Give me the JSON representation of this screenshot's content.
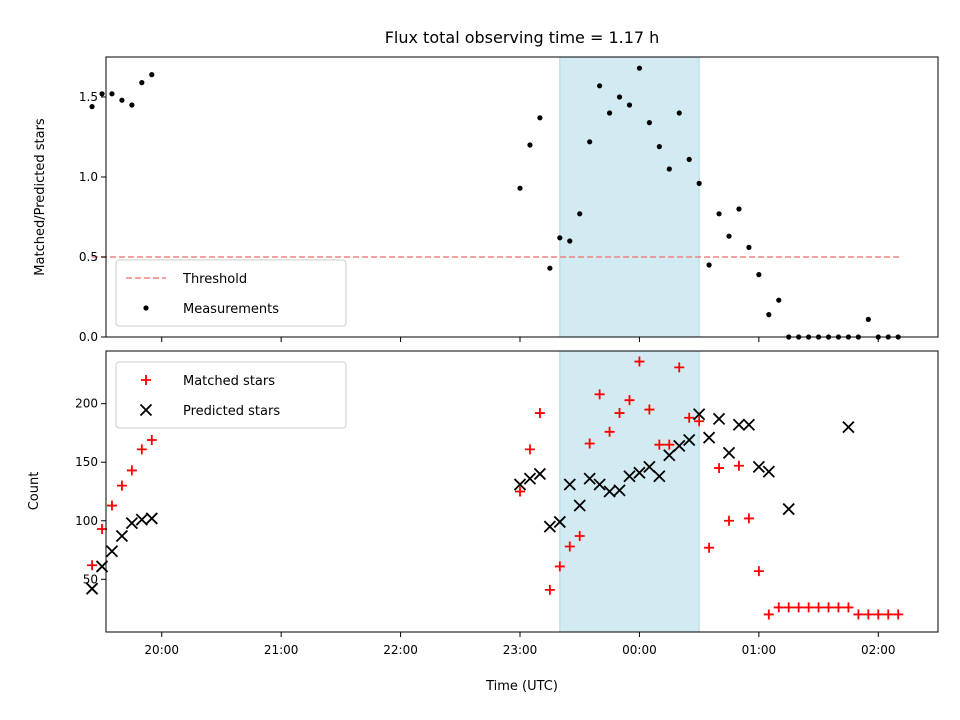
{
  "chart_data": [
    {
      "type": "scatter",
      "title": "Flux total observing time = 1.17 h",
      "xlabel": "",
      "ylabel": "Matched/Predicted stars",
      "xlim": [
        "19:32",
        "02:30"
      ],
      "ylim": [
        0,
        1.75
      ],
      "yticks": [
        0.0,
        0.5,
        1.0,
        1.5
      ],
      "ytick_labels": [
        "0.0",
        "0.5",
        "1.0",
        "1.5"
      ],
      "xticks": [
        "20:00",
        "21:00",
        "22:00",
        "23:00",
        "00:00",
        "01:00",
        "02:00"
      ],
      "show_xtick_labels": false,
      "grid": false,
      "legend_location": "lower left",
      "shaded_span": {
        "from": "23:20",
        "to": "00:30",
        "color": "#add8e6"
      },
      "threshold": {
        "name": "Threshold",
        "value": 0.5,
        "from": "19:25",
        "to": "02:12",
        "color": "#f08080",
        "style": "dashed"
      },
      "series": [
        {
          "name": "Measurements",
          "color": "#000000",
          "marker": "dot",
          "x": [
            "19:25",
            "19:30",
            "19:35",
            "19:40",
            "19:45",
            "19:50",
            "19:55",
            "23:00",
            "23:05",
            "23:10",
            "23:15",
            "23:20",
            "23:25",
            "23:30",
            "23:35",
            "23:40",
            "23:45",
            "23:50",
            "23:55",
            "00:00",
            "00:05",
            "00:10",
            "00:15",
            "00:20",
            "00:25",
            "00:30",
            "00:35",
            "00:40",
            "00:45",
            "00:50",
            "00:55",
            "01:00",
            "01:05",
            "01:10",
            "01:15",
            "01:20",
            "01:25",
            "01:30",
            "01:35",
            "01:40",
            "01:45",
            "01:50",
            "01:55",
            "02:00",
            "02:05",
            "02:10"
          ],
          "values": [
            1.44,
            1.52,
            1.52,
            1.48,
            1.45,
            1.59,
            1.64,
            0.93,
            1.2,
            1.37,
            0.43,
            0.62,
            0.6,
            0.77,
            1.22,
            1.57,
            1.4,
            1.5,
            1.45,
            1.68,
            1.34,
            1.19,
            1.05,
            1.4,
            1.11,
            0.96,
            0.45,
            0.77,
            0.63,
            0.8,
            0.56,
            0.39,
            0.14,
            0.23,
            0.0,
            0.0,
            0.0,
            0.0,
            0.0,
            0.0,
            0.0,
            0.0,
            0.11,
            0.0,
            0.0,
            0.0
          ]
        }
      ]
    },
    {
      "type": "scatter",
      "title": "",
      "xlabel": "Time (UTC)",
      "ylabel": "Count",
      "xlim": [
        "19:32",
        "02:30"
      ],
      "ylim": [
        5,
        245
      ],
      "yticks": [
        50,
        100,
        150,
        200
      ],
      "ytick_labels": [
        "50",
        "100",
        "150",
        "200"
      ],
      "xticks": [
        "20:00",
        "21:00",
        "22:00",
        "23:00",
        "00:00",
        "01:00",
        "02:00"
      ],
      "xtick_labels": [
        "20:00",
        "21:00",
        "22:00",
        "23:00",
        "00:00",
        "01:00",
        "02:00"
      ],
      "grid": false,
      "legend_location": "upper left",
      "shaded_span": {
        "from": "23:20",
        "to": "00:30",
        "color": "#add8e6"
      },
      "series": [
        {
          "name": "Matched stars",
          "color": "#ff0000",
          "marker": "plus",
          "x": [
            "19:25",
            "19:30",
            "19:35",
            "19:40",
            "19:45",
            "19:50",
            "19:55",
            "23:00",
            "23:05",
            "23:10",
            "23:15",
            "23:20",
            "23:25",
            "23:30",
            "23:35",
            "23:40",
            "23:45",
            "23:50",
            "23:55",
            "00:00",
            "00:05",
            "00:10",
            "00:15",
            "00:20",
            "00:25",
            "00:30",
            "00:35",
            "00:40",
            "00:45",
            "00:50",
            "00:55",
            "01:00",
            "01:05",
            "01:10",
            "01:15",
            "01:20",
            "01:25",
            "01:30",
            "01:35",
            "01:40",
            "01:45",
            "01:50",
            "01:55",
            "02:00",
            "02:05",
            "02:10"
          ],
          "values": [
            62,
            93,
            113,
            130,
            143,
            161,
            169,
            125,
            161,
            192,
            41,
            61,
            78,
            87,
            166,
            208,
            176,
            192,
            203,
            236,
            195,
            165,
            165,
            231,
            188,
            185,
            77,
            145,
            100,
            147,
            102,
            57,
            20,
            26,
            26,
            26,
            26,
            26,
            26,
            26,
            26,
            20,
            20,
            20,
            20,
            20
          ]
        },
        {
          "name": "Predicted stars",
          "color": "#000000",
          "marker": "x",
          "x": [
            "19:25",
            "19:30",
            "19:35",
            "19:40",
            "19:45",
            "19:50",
            "19:55",
            "23:00",
            "23:05",
            "23:10",
            "23:15",
            "23:20",
            "23:25",
            "23:30",
            "23:35",
            "23:40",
            "23:45",
            "23:50",
            "23:55",
            "00:00",
            "00:05",
            "00:10",
            "00:15",
            "00:20",
            "00:25",
            "00:30",
            "00:35",
            "00:40",
            "00:45",
            "00:50",
            "00:55",
            "01:00",
            "01:05",
            "01:15",
            "01:45"
          ],
          "values": [
            42,
            61,
            74,
            87,
            98,
            101,
            102,
            131,
            136,
            140,
            95,
            99,
            131,
            113,
            136,
            131,
            125,
            126,
            138,
            141,
            146,
            138,
            156,
            164,
            169,
            191,
            171,
            187,
            158,
            182,
            182,
            146,
            142,
            110,
            180
          ]
        }
      ]
    }
  ]
}
